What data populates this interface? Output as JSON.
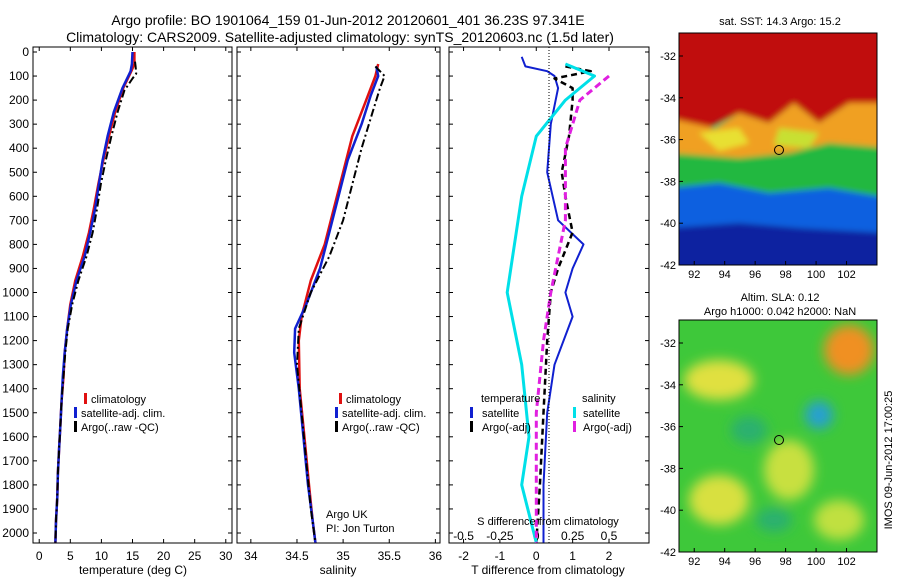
{
  "header": {
    "line1": "Argo profile: BO 1901064_159 01-Jun-2012 20120601_401 36.23S 97.341E",
    "line2": "Climatology: CARS2009. Satellite-adjusted climatology: synTS_20120603.nc (1.5d later)"
  },
  "side_stamp": "IMOS 09-Jun-2012 17:00:25",
  "argo_credit": {
    "line1": "Argo UK",
    "line2": "PI: Jon Turton"
  },
  "colors": {
    "climatology": "#e01010",
    "satellite": "#1020d0",
    "argo": "#000000",
    "sal_satellite": "#00e0e8",
    "sal_argo": "#e020e0"
  },
  "chart_data": [
    {
      "type": "line",
      "panel": "temperature",
      "xlabel": "temperature (deg C)",
      "ylabel": "",
      "xlim": [
        -1,
        31
      ],
      "ylim": [
        2080,
        0
      ],
      "xticks": [
        "0",
        "5",
        "10",
        "15",
        "20",
        "25",
        "30"
      ],
      "yticks": [
        "0",
        "100",
        "200",
        "300",
        "400",
        "500",
        "600",
        "700",
        "800",
        "900",
        "1000",
        "1100",
        "1200",
        "1300",
        "1400",
        "1500",
        "1600",
        "1700",
        "1800",
        "1900",
        "2000"
      ],
      "legend_position": "lower-center",
      "series": [
        {
          "name": "climatology",
          "points": [
            [
              15.3,
              0
            ],
            [
              15.3,
              50
            ],
            [
              14.8,
              80
            ],
            [
              13.5,
              150
            ],
            [
              12.2,
              250
            ],
            [
              11.2,
              350
            ],
            [
              10.3,
              450
            ],
            [
              9.5,
              550
            ],
            [
              8.8,
              650
            ],
            [
              8.0,
              750
            ],
            [
              7.0,
              850
            ],
            [
              5.8,
              950
            ],
            [
              5.0,
              1050
            ],
            [
              4.5,
              1150
            ],
            [
              4.1,
              1250
            ],
            [
              3.9,
              1350
            ],
            [
              3.6,
              1450
            ],
            [
              3.4,
              1550
            ],
            [
              3.2,
              1650
            ],
            [
              3.0,
              1750
            ],
            [
              2.9,
              1850
            ],
            [
              2.7,
              1950
            ],
            [
              2.6,
              2040
            ]
          ]
        },
        {
          "name": "satellite-adj. clim.",
          "points": [
            [
              15.0,
              0
            ],
            [
              14.9,
              50
            ],
            [
              14.7,
              80
            ],
            [
              13.4,
              150
            ],
            [
              12.0,
              250
            ],
            [
              11.0,
              350
            ],
            [
              10.2,
              450
            ],
            [
              9.6,
              550
            ],
            [
              9.0,
              650
            ],
            [
              8.2,
              750
            ],
            [
              7.3,
              850
            ],
            [
              6.0,
              950
            ],
            [
              5.1,
              1050
            ],
            [
              4.5,
              1150
            ],
            [
              4.1,
              1250
            ],
            [
              3.8,
              1350
            ],
            [
              3.6,
              1450
            ],
            [
              3.4,
              1550
            ],
            [
              3.2,
              1650
            ],
            [
              3.0,
              1750
            ],
            [
              2.9,
              1850
            ],
            [
              2.7,
              1950
            ],
            [
              2.6,
              2040
            ]
          ]
        },
        {
          "name": "Argo(..raw -QC)",
          "points": [
            [
              15.4,
              40
            ],
            [
              15.5,
              60
            ],
            [
              15.6,
              90
            ],
            [
              15.0,
              110
            ],
            [
              13.7,
              160
            ],
            [
              12.6,
              250
            ],
            [
              11.6,
              350
            ],
            [
              10.7,
              450
            ],
            [
              9.9,
              550
            ],
            [
              9.3,
              650
            ],
            [
              8.6,
              750
            ],
            [
              7.6,
              850
            ],
            [
              6.3,
              950
            ],
            [
              5.3,
              1050
            ],
            [
              4.6,
              1150
            ],
            [
              4.2,
              1250
            ],
            [
              3.9,
              1350
            ],
            [
              3.6,
              1450
            ],
            [
              3.4,
              1550
            ],
            [
              3.2,
              1650
            ],
            [
              3.0,
              1750
            ],
            [
              2.9,
              1850
            ],
            [
              2.7,
              1950
            ],
            [
              2.6,
              2040
            ]
          ]
        }
      ]
    },
    {
      "type": "line",
      "panel": "salinity",
      "xlabel": "salinity",
      "ylabel": "",
      "xlim": [
        33.85,
        36.05
      ],
      "ylim": [
        2080,
        0
      ],
      "xticks": [
        "34",
        "34.5",
        "35",
        "35.5",
        "36"
      ],
      "legend_position": "lower-right",
      "series": [
        {
          "name": "climatology",
          "points": [
            [
              35.38,
              50
            ],
            [
              35.35,
              100
            ],
            [
              35.25,
              200
            ],
            [
              35.1,
              350
            ],
            [
              35.0,
              500
            ],
            [
              34.9,
              650
            ],
            [
              34.8,
              800
            ],
            [
              34.65,
              950
            ],
            [
              34.55,
              1100
            ],
            [
              34.52,
              1200
            ],
            [
              34.53,
              1400
            ],
            [
              34.58,
              1600
            ],
            [
              34.63,
              1800
            ],
            [
              34.67,
              1950
            ],
            [
              34.7,
              2040
            ]
          ]
        },
        {
          "name": "satellite-adj. clim.",
          "points": [
            [
              35.36,
              60
            ],
            [
              35.38,
              100
            ],
            [
              35.3,
              180
            ],
            [
              35.2,
              300
            ],
            [
              35.05,
              450
            ],
            [
              34.95,
              600
            ],
            [
              34.85,
              750
            ],
            [
              34.75,
              900
            ],
            [
              34.6,
              1050
            ],
            [
              34.48,
              1150
            ],
            [
              34.47,
              1250
            ],
            [
              34.52,
              1400
            ],
            [
              34.57,
              1600
            ],
            [
              34.62,
              1800
            ],
            [
              34.67,
              1950
            ],
            [
              34.7,
              2040
            ]
          ]
        },
        {
          "name": "Argo(..raw -QC)",
          "points": [
            [
              35.35,
              60
            ],
            [
              35.45,
              100
            ],
            [
              35.4,
              150
            ],
            [
              35.32,
              250
            ],
            [
              35.2,
              400
            ],
            [
              35.1,
              550
            ],
            [
              35.0,
              700
            ],
            [
              34.85,
              850
            ],
            [
              34.65,
              1000
            ],
            [
              34.52,
              1150
            ],
            [
              34.5,
              1300
            ],
            [
              34.55,
              1500
            ],
            [
              34.6,
              1700
            ],
            [
              34.65,
              1900
            ],
            [
              34.7,
              2040
            ]
          ]
        }
      ]
    },
    {
      "type": "line",
      "panel": "difference",
      "xlabel": "T difference from climatology",
      "xlabel2": "S difference from climatology",
      "xlim": [
        -2.4,
        3.1
      ],
      "ylim": [
        2080,
        0
      ],
      "xticks": [
        "-2",
        "-1",
        "0",
        "1",
        "2"
      ],
      "xticks2": [
        "-0.5",
        "-0.25",
        "0",
        "0.25",
        "0.5"
      ],
      "legend_groups": [
        {
          "title": "temperature",
          "entries": [
            "satellite",
            "Argo(-adj)"
          ]
        },
        {
          "title": "salinity",
          "entries": [
            "satellite",
            "Argo(-adj)"
          ]
        }
      ],
      "legend_position": "lower-center",
      "series": [
        {
          "name": "satellite",
          "group": "temperature",
          "points": [
            [
              -0.4,
              20
            ],
            [
              -0.3,
              60
            ],
            [
              0.3,
              80
            ],
            [
              0.5,
              100
            ],
            [
              0.6,
              150
            ],
            [
              0.4,
              300
            ],
            [
              0.3,
              500
            ],
            [
              0.6,
              700
            ],
            [
              1.3,
              800
            ],
            [
              1.0,
              900
            ],
            [
              0.8,
              1000
            ],
            [
              1.0,
              1100
            ],
            [
              0.5,
              1300
            ],
            [
              0.3,
              1500
            ],
            [
              0.2,
              1800
            ],
            [
              0.2,
              2040
            ]
          ]
        },
        {
          "name": "Argo(-adj)",
          "group": "temperature",
          "points": [
            [
              0.8,
              60
            ],
            [
              1.5,
              80
            ],
            [
              0.5,
              110
            ],
            [
              1.0,
              150
            ],
            [
              1.0,
              200
            ],
            [
              0.9,
              350
            ],
            [
              0.7,
              500
            ],
            [
              0.8,
              600
            ],
            [
              1.0,
              750
            ],
            [
              0.6,
              900
            ],
            [
              0.4,
              1000
            ],
            [
              0.3,
              1200
            ],
            [
              0.2,
              1500
            ],
            [
              0.1,
              1800
            ],
            [
              0.0,
              2040
            ]
          ]
        },
        {
          "name": "satellite",
          "group": "salinity",
          "points": [
            [
              0.2,
              50
            ],
            [
              0.4,
              100
            ],
            [
              0.2,
              200
            ],
            [
              0.0,
              350
            ],
            [
              -0.1,
              600
            ],
            [
              -0.2,
              1000
            ],
            [
              -0.1,
              1300
            ],
            [
              -0.05,
              1600
            ],
            [
              -0.1,
              1800
            ],
            [
              0.0,
              2040
            ]
          ]
        },
        {
          "name": "Argo(-adj)",
          "group": "salinity",
          "points": [
            [
              0.5,
              100
            ],
            [
              0.3,
              200
            ],
            [
              0.2,
              400
            ],
            [
              0.2,
              700
            ],
            [
              0.1,
              1000
            ],
            [
              0.05,
              1200
            ],
            [
              0.0,
              1500
            ],
            [
              0.0,
              1800
            ],
            [
              0.0,
              2040
            ]
          ]
        }
      ]
    },
    {
      "type": "heatmap",
      "panel": "sst-map",
      "title": "sat. SST: 14.3 Argo: 15.2",
      "xticks": [
        "92",
        "94",
        "96",
        "98",
        "100",
        "102"
      ],
      "yticks": [
        "-32",
        "-34",
        "-36",
        "-38",
        "-40",
        "-42"
      ],
      "xlim": [
        91,
        104
      ],
      "ylim": [
        -42,
        -30.9
      ],
      "marker": {
        "lon": 97.3,
        "lat": -36.2
      }
    },
    {
      "type": "heatmap",
      "panel": "sla-map",
      "title": "Altim. SLA: 0.12",
      "subtitle": "Argo h1000: 0.042 h2000: NaN",
      "xticks": [
        "92",
        "94",
        "96",
        "98",
        "100",
        "102"
      ],
      "yticks": [
        "-32",
        "-34",
        "-36",
        "-38",
        "-40",
        "-42"
      ],
      "xlim": [
        91,
        104
      ],
      "ylim": [
        -42,
        -30.9
      ],
      "marker": {
        "lon": 97.3,
        "lat": -36.2
      }
    }
  ]
}
